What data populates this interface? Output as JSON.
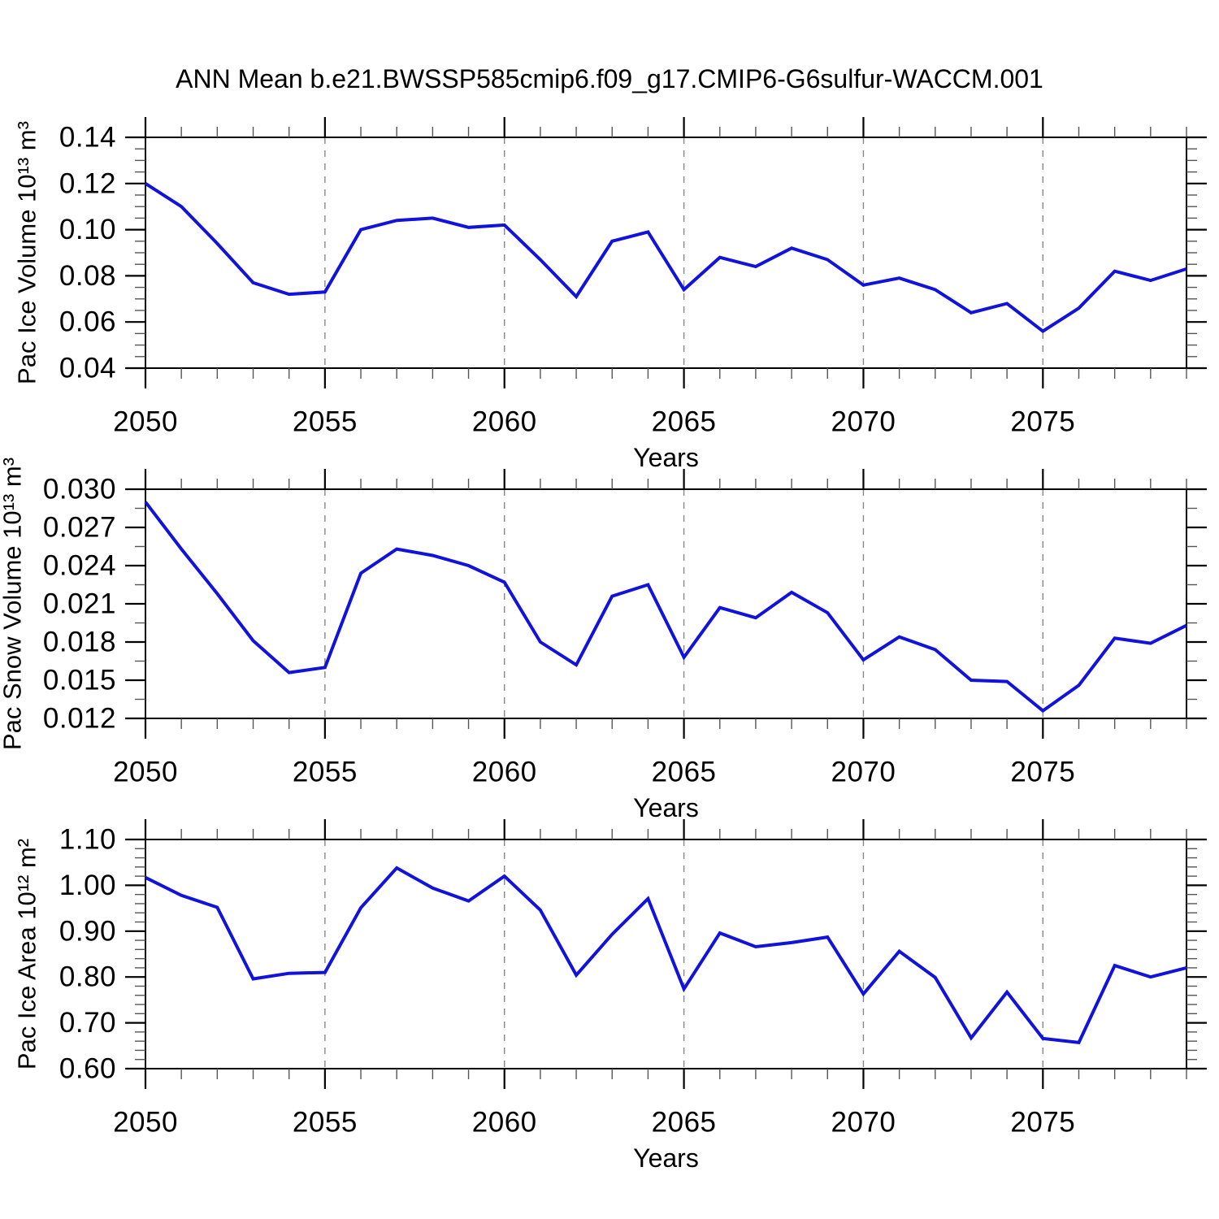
{
  "title": "ANN Mean b.e21.BWSSP585cmip6.f09_g17.CMIP6-G6sulfur-WACCM.001",
  "colors": {
    "line": "#1212dd",
    "axis": "#000000",
    "grid": "#888888",
    "minor_tick": "#555555",
    "background": "#ffffff",
    "text": "#000000"
  },
  "chart_data": [
    {
      "id": "pac-ice-volume",
      "type": "line",
      "xlabel": "Years",
      "ylabel": "Pac Ice Volume 10¹³ m³",
      "xlim": [
        2050,
        2079
      ],
      "ylim": [
        0.04,
        0.14
      ],
      "xtick_values": [
        2050,
        2055,
        2060,
        2065,
        2070,
        2075
      ],
      "xtick_labels": [
        "2050",
        "2055",
        "2060",
        "2065",
        "2070",
        "2075"
      ],
      "x_minor_step": 1,
      "ytick_values": [
        0.04,
        0.06,
        0.08,
        0.1,
        0.12,
        0.14
      ],
      "ytick_labels": [
        "0.04",
        "0.06",
        "0.08",
        "0.10",
        "0.12",
        "0.14"
      ],
      "y_minor_step": 0.005,
      "grid_x": [
        2055,
        2060,
        2065,
        2070,
        2075
      ],
      "grid_style": "dashed",
      "x": [
        2050,
        2051,
        2052,
        2053,
        2054,
        2055,
        2056,
        2057,
        2058,
        2059,
        2060,
        2061,
        2062,
        2063,
        2064,
        2065,
        2066,
        2067,
        2068,
        2069,
        2070,
        2071,
        2072,
        2073,
        2074,
        2075,
        2076,
        2077,
        2078,
        2079
      ],
      "values": [
        0.12,
        0.11,
        0.094,
        0.077,
        0.072,
        0.073,
        0.1,
        0.104,
        0.105,
        0.101,
        0.102,
        0.087,
        0.071,
        0.095,
        0.099,
        0.074,
        0.088,
        0.084,
        0.092,
        0.087,
        0.076,
        0.079,
        0.074,
        0.064,
        0.068,
        0.056,
        0.066,
        0.082,
        0.078,
        0.083
      ]
    },
    {
      "id": "pac-snow-volume",
      "type": "line",
      "xlabel": "Years",
      "ylabel": "Pac Snow Volume 10¹³ m³",
      "xlim": [
        2050,
        2079
      ],
      "ylim": [
        0.012,
        0.03
      ],
      "xtick_values": [
        2050,
        2055,
        2060,
        2065,
        2070,
        2075
      ],
      "xtick_labels": [
        "2050",
        "2055",
        "2060",
        "2065",
        "2070",
        "2075"
      ],
      "x_minor_step": 1,
      "ytick_values": [
        0.012,
        0.015,
        0.018,
        0.021,
        0.024,
        0.027,
        0.03
      ],
      "ytick_labels": [
        "0.012",
        "0.015",
        "0.018",
        "0.021",
        "0.024",
        "0.027",
        "0.030"
      ],
      "y_minor_step": 0.0015,
      "grid_x": [
        2055,
        2060,
        2065,
        2070,
        2075
      ],
      "grid_style": "dashed",
      "x": [
        2050,
        2051,
        2052,
        2053,
        2054,
        2055,
        2056,
        2057,
        2058,
        2059,
        2060,
        2061,
        2062,
        2063,
        2064,
        2065,
        2066,
        2067,
        2068,
        2069,
        2070,
        2071,
        2072,
        2073,
        2074,
        2075,
        2076,
        2077,
        2078,
        2079
      ],
      "values": [
        0.029,
        0.0253,
        0.0218,
        0.0181,
        0.0156,
        0.016,
        0.0234,
        0.0253,
        0.0248,
        0.024,
        0.0227,
        0.018,
        0.0162,
        0.0216,
        0.0225,
        0.0168,
        0.0207,
        0.0199,
        0.0219,
        0.0203,
        0.0166,
        0.0184,
        0.0174,
        0.015,
        0.0149,
        0.0126,
        0.0146,
        0.0183,
        0.0179,
        0.0193
      ]
    },
    {
      "id": "pac-ice-area",
      "type": "line",
      "xlabel": "Years",
      "ylabel": "Pac Ice Area 10¹² m²",
      "xlim": [
        2050,
        2079
      ],
      "ylim": [
        0.6,
        1.1
      ],
      "xtick_values": [
        2050,
        2055,
        2060,
        2065,
        2070,
        2075
      ],
      "xtick_labels": [
        "2050",
        "2055",
        "2060",
        "2065",
        "2070",
        "2075"
      ],
      "x_minor_step": 1,
      "ytick_values": [
        0.6,
        0.7,
        0.8,
        0.9,
        1.0,
        1.1
      ],
      "ytick_labels": [
        "0.60",
        "0.70",
        "0.80",
        "0.90",
        "1.00",
        "1.10"
      ],
      "y_minor_step": 0.02,
      "grid_x": [
        2055,
        2060,
        2065,
        2070,
        2075
      ],
      "grid_style": "dashed",
      "x": [
        2050,
        2051,
        2052,
        2053,
        2054,
        2055,
        2056,
        2057,
        2058,
        2059,
        2060,
        2061,
        2062,
        2063,
        2064,
        2065,
        2066,
        2067,
        2068,
        2069,
        2070,
        2071,
        2072,
        2073,
        2074,
        2075,
        2076,
        2077,
        2078,
        2079
      ],
      "values": [
        1.017,
        0.978,
        0.952,
        0.796,
        0.808,
        0.81,
        0.951,
        1.038,
        0.994,
        0.966,
        1.02,
        0.946,
        0.804,
        0.893,
        0.971,
        0.774,
        0.896,
        0.866,
        0.875,
        0.887,
        0.763,
        0.856,
        0.799,
        0.667,
        0.767,
        0.666,
        0.657,
        0.825,
        0.8,
        0.82
      ]
    }
  ]
}
